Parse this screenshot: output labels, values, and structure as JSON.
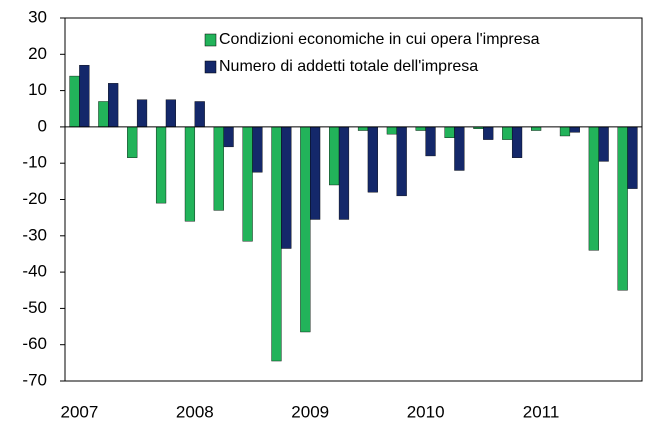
{
  "chart_data": {
    "type": "bar",
    "categories": [
      "2007",
      null,
      null,
      null,
      "2008",
      null,
      null,
      null,
      "2009",
      null,
      null,
      null,
      "2010",
      null,
      null,
      null,
      "2011",
      null,
      null,
      null
    ],
    "series": [
      {
        "name": "Condizioni economiche in cui opera l'impresa",
        "color": "#22b35a",
        "values": [
          14,
          7,
          -8.5,
          -21,
          -26,
          -23,
          -31.5,
          -64.5,
          -56.5,
          -16,
          -1,
          -2,
          -1,
          -3,
          -0.5,
          -3.5,
          -1,
          -2.5,
          -34,
          -45
        ]
      },
      {
        "name": "Numero di addetti totale dell'impresa",
        "color": "#14286a",
        "values": [
          17,
          12,
          7.5,
          7.5,
          7,
          -5.5,
          -12.5,
          -33.5,
          -25.5,
          -25.5,
          -18,
          -19,
          -8,
          -12,
          -3.5,
          -8.5,
          0,
          -1.5,
          -9.5,
          -17
        ]
      }
    ],
    "ylim": [
      -70,
      30
    ],
    "yticks": [
      -70,
      -60,
      -50,
      -40,
      -30,
      -20,
      -10,
      0,
      10,
      20,
      30
    ],
    "grid": false,
    "legend": "top-right"
  }
}
